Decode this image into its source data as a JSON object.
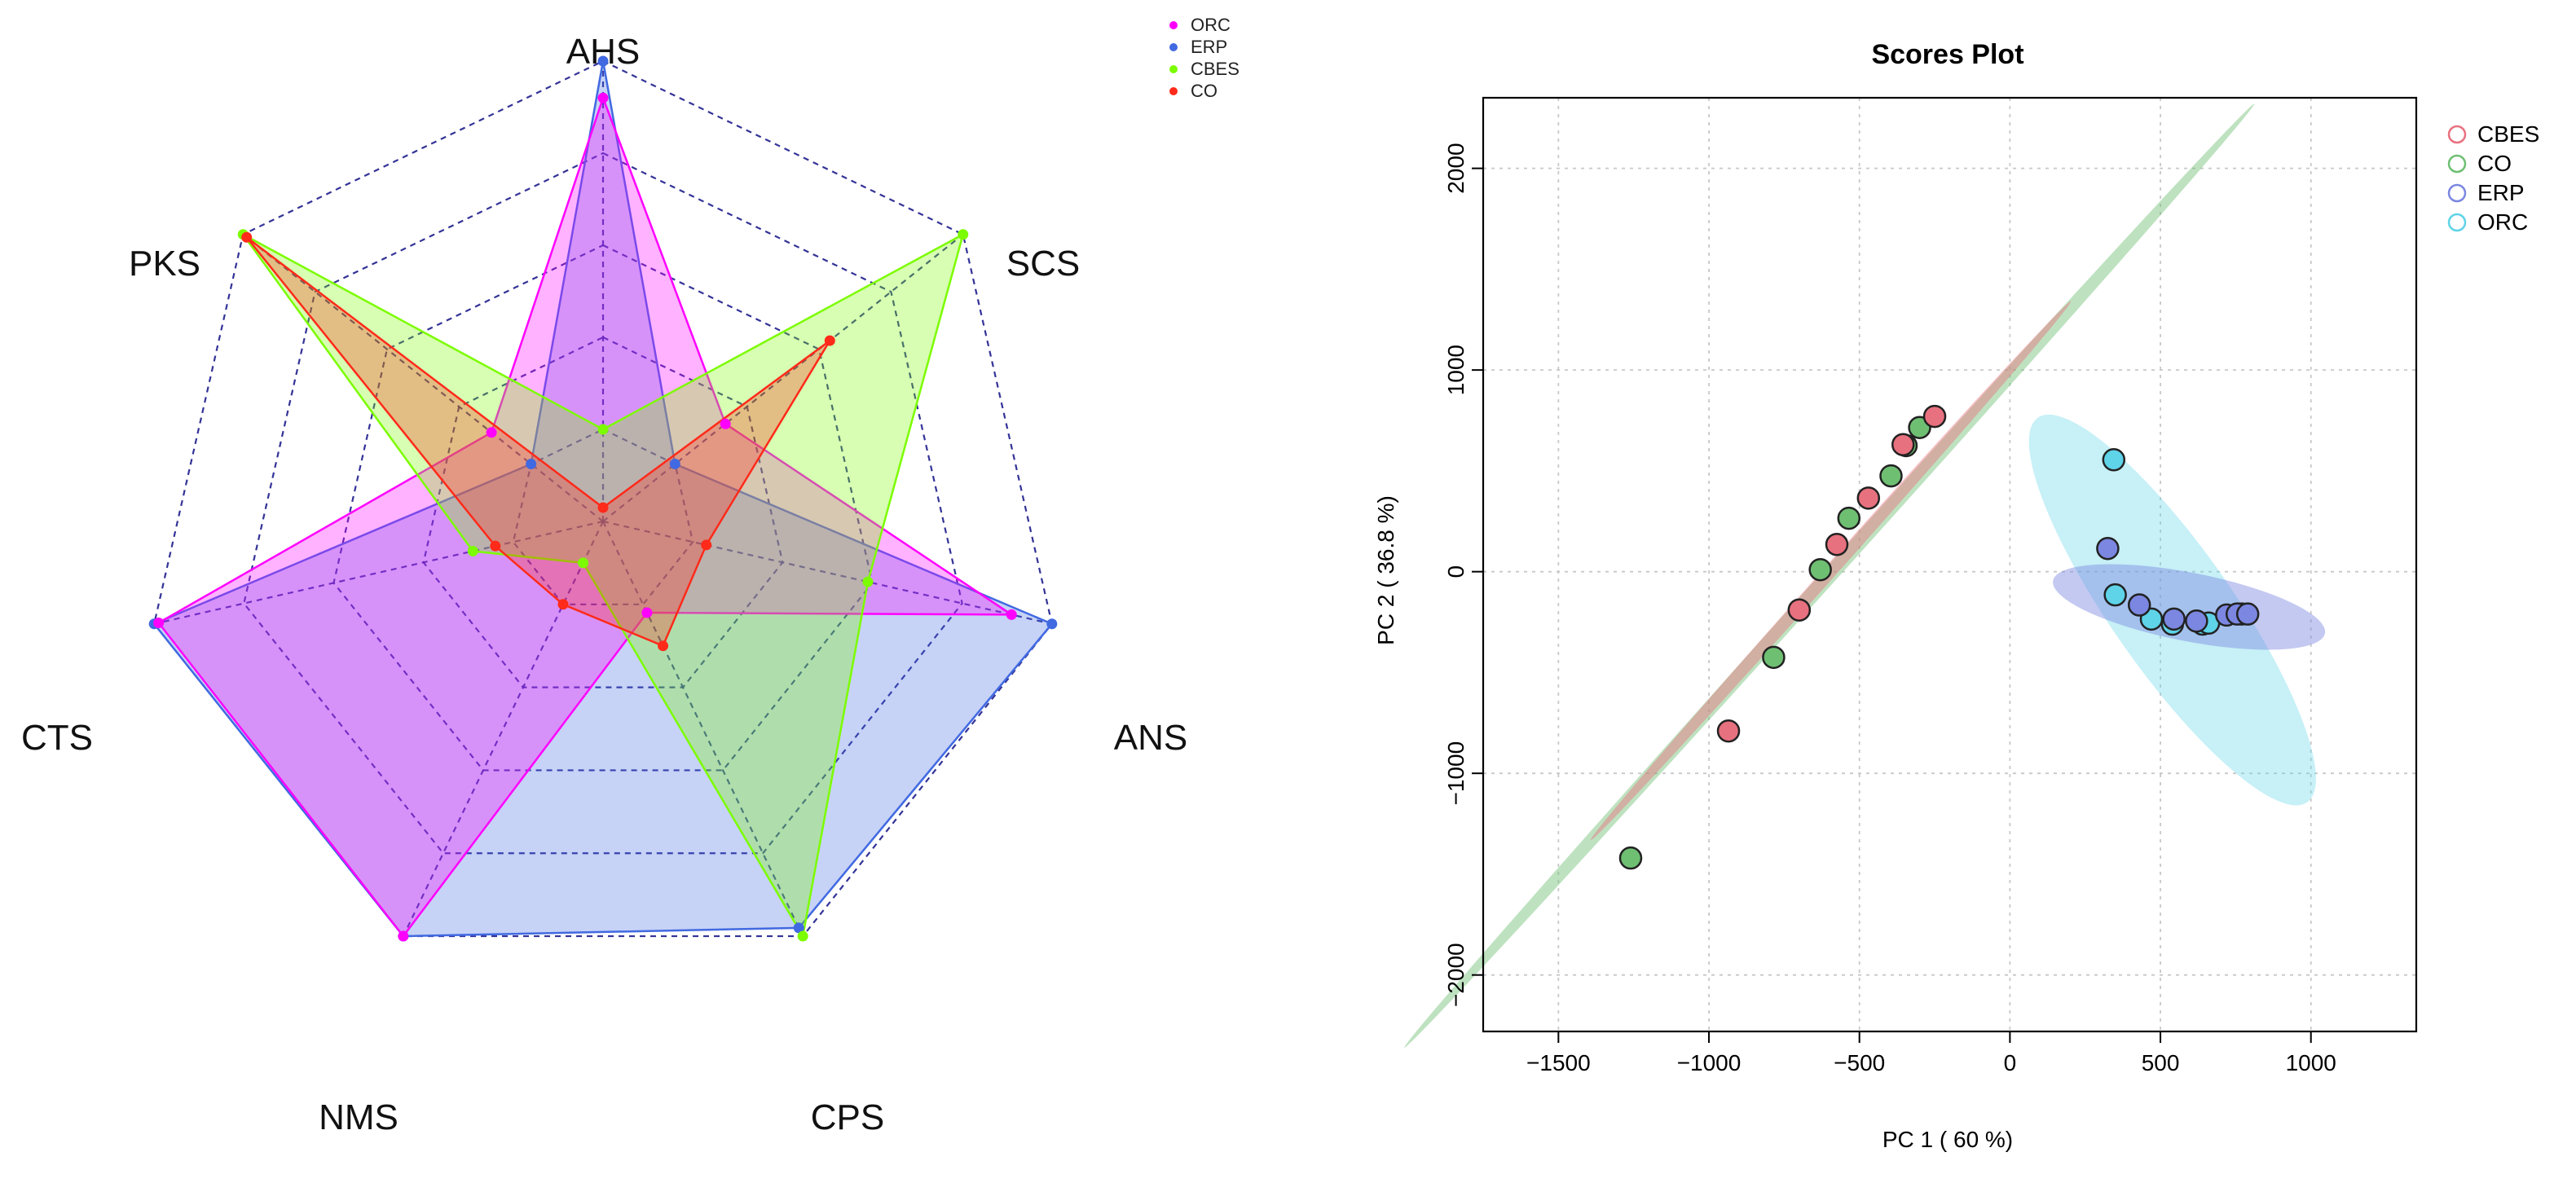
{
  "colors": {
    "ORC_radar": "#ff00ff",
    "ERP_radar": "#4169e1",
    "CBES_radar": "#7cfc00",
    "CO_radar": "#ff2a1a",
    "web": "#1d1d8c",
    "CBES_pca": "#e8717f",
    "CO_pca": "#6fbf73",
    "ERP_pca": "#7b87e0",
    "ORC_pca": "#5fd3e8"
  },
  "chart_data": [
    {
      "type": "radar",
      "title": "",
      "axes": [
        "AHS",
        "SCS",
        "ANS",
        "CPS",
        "NMS",
        "CTS",
        "PKS"
      ],
      "levels": 5,
      "range": [
        0,
        1
      ],
      "legend": {
        "position": "top-right",
        "entries": [
          "ORC",
          "ERP",
          "CBES",
          "CO"
        ]
      },
      "series": [
        {
          "name": "ORC",
          "values": [
            0.92,
            0.34,
            0.91,
            0.22,
            1.0,
            0.99,
            0.31
          ]
        },
        {
          "name": "ERP",
          "values": [
            1.0,
            0.2,
            1.0,
            0.98,
            1.0,
            1.0,
            0.2
          ]
        },
        {
          "name": "CBES",
          "values": [
            0.2,
            1.0,
            0.59,
            1.0,
            0.1,
            0.29,
            1.0
          ]
        },
        {
          "name": "CO",
          "values": [
            0.03,
            0.63,
            0.23,
            0.3,
            0.2,
            0.24,
            0.99
          ]
        }
      ]
    },
    {
      "type": "scatter",
      "title": "Scores Plot",
      "xlabel": "PC 1 ( 60 %)",
      "ylabel": "PC 2 ( 36.8 %)",
      "xlim": [
        -1750,
        1350
      ],
      "ylim": [
        -2280,
        2350
      ],
      "xticks": [
        -1500,
        -1000,
        -500,
        0,
        500,
        1000
      ],
      "yticks": [
        -2000,
        -1000,
        0,
        1000,
        2000
      ],
      "grid": true,
      "legend": {
        "position": "top-right",
        "entries": [
          "CBES",
          "CO",
          "ERP",
          "ORC"
        ]
      },
      "ellipses": [
        {
          "name": "CO",
          "cx": -600,
          "cy": -20,
          "rx": 2110,
          "ry": 38,
          "angle_deg": 48.0
        },
        {
          "name": "CBES",
          "cx": -595,
          "cy": 5,
          "rx": 1200,
          "ry": 32,
          "angle_deg": 48.3
        },
        {
          "name": "ORC",
          "cx": 540,
          "cy": -190,
          "rx": 780,
          "ry": 300,
          "angle_deg": -55.0
        },
        {
          "name": "ERP",
          "cx": 595,
          "cy": -175,
          "rx": 460,
          "ry": 170,
          "angle_deg": -11.0
        }
      ],
      "series": [
        {
          "name": "CBES",
          "points": [
            [
              -250,
              770
            ],
            [
              -355,
              630
            ],
            [
              -470,
              365
            ],
            [
              -575,
              135
            ],
            [
              -700,
              -190
            ],
            [
              -935,
              -790
            ]
          ]
        },
        {
          "name": "CO",
          "points": [
            [
              -300,
              715
            ],
            [
              -345,
              625
            ],
            [
              -395,
              475
            ],
            [
              -535,
              265
            ],
            [
              -630,
              10
            ],
            [
              -785,
              -425
            ],
            [
              -1260,
              -1420
            ]
          ]
        },
        {
          "name": "ERP",
          "points": [
            [
              325,
              115
            ],
            [
              430,
              -165
            ],
            [
              545,
              -235
            ],
            [
              620,
              -245
            ],
            [
              720,
              -215
            ],
            [
              755,
              -210
            ],
            [
              790,
              -210
            ]
          ]
        },
        {
          "name": "ORC",
          "points": [
            [
              345,
              555
            ],
            [
              350,
              -115
            ],
            [
              470,
              -235
            ],
            [
              540,
              -260
            ],
            [
              640,
              -260
            ],
            [
              660,
              -255
            ],
            [
              770,
              -210
            ]
          ]
        }
      ]
    }
  ]
}
